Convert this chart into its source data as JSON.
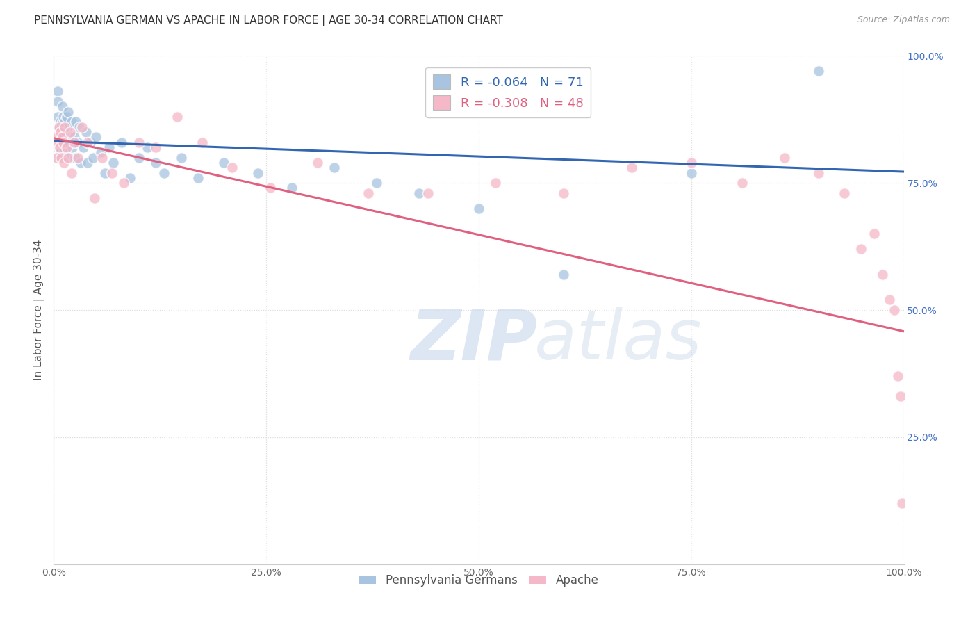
{
  "title": "PENNSYLVANIA GERMAN VS APACHE IN LABOR FORCE | AGE 30-34 CORRELATION CHART",
  "source": "Source: ZipAtlas.com",
  "ylabel": "In Labor Force | Age 30-34",
  "xlim": [
    0.0,
    1.0
  ],
  "ylim": [
    0.0,
    1.0
  ],
  "xticks": [
    0.0,
    0.25,
    0.5,
    0.75,
    1.0
  ],
  "yticks": [
    0.0,
    0.25,
    0.5,
    0.75,
    1.0
  ],
  "xticklabels": [
    "0.0%",
    "25.0%",
    "50.0%",
    "75.0%",
    "100.0%"
  ],
  "right_yticklabels": [
    "",
    "25.0%",
    "50.0%",
    "75.0%",
    "100.0%"
  ],
  "blue_R": -0.064,
  "blue_N": 71,
  "pink_R": -0.308,
  "pink_N": 48,
  "blue_color": "#a8c4e0",
  "pink_color": "#f4b8c8",
  "blue_line_color": "#3366b0",
  "pink_line_color": "#e06080",
  "legend_label_blue": "Pennsylvania Germans",
  "legend_label_pink": "Apache",
  "watermark_zip": "ZIP",
  "watermark_atlas": "atlas",
  "background_color": "#ffffff",
  "grid_color": "#dddddd",
  "title_fontsize": 11,
  "axis_label_fontsize": 11,
  "tick_fontsize": 10,
  "right_tick_color": "#4472c4",
  "blue_x": [
    0.002,
    0.003,
    0.004,
    0.004,
    0.005,
    0.005,
    0.005,
    0.006,
    0.006,
    0.006,
    0.007,
    0.007,
    0.007,
    0.008,
    0.008,
    0.008,
    0.009,
    0.009,
    0.01,
    0.01,
    0.01,
    0.011,
    0.011,
    0.012,
    0.012,
    0.013,
    0.013,
    0.014,
    0.015,
    0.015,
    0.016,
    0.017,
    0.018,
    0.019,
    0.02,
    0.021,
    0.022,
    0.024,
    0.025,
    0.026,
    0.028,
    0.03,
    0.032,
    0.035,
    0.038,
    0.04,
    0.043,
    0.046,
    0.05,
    0.055,
    0.06,
    0.065,
    0.07,
    0.08,
    0.09,
    0.1,
    0.11,
    0.12,
    0.13,
    0.15,
    0.17,
    0.2,
    0.24,
    0.28,
    0.33,
    0.38,
    0.43,
    0.5,
    0.6,
    0.75,
    0.9
  ],
  "blue_y": [
    0.84,
    0.82,
    0.85,
    0.8,
    0.93,
    0.91,
    0.88,
    0.86,
    0.84,
    0.82,
    0.85,
    0.83,
    0.8,
    0.87,
    0.84,
    0.81,
    0.86,
    0.83,
    0.9,
    0.87,
    0.84,
    0.88,
    0.85,
    0.84,
    0.81,
    0.87,
    0.83,
    0.85,
    0.88,
    0.83,
    0.86,
    0.89,
    0.83,
    0.8,
    0.84,
    0.87,
    0.82,
    0.84,
    0.8,
    0.87,
    0.83,
    0.86,
    0.79,
    0.82,
    0.85,
    0.79,
    0.83,
    0.8,
    0.84,
    0.81,
    0.77,
    0.82,
    0.79,
    0.83,
    0.76,
    0.8,
    0.82,
    0.79,
    0.77,
    0.8,
    0.76,
    0.79,
    0.77,
    0.74,
    0.78,
    0.75,
    0.73,
    0.7,
    0.57,
    0.77,
    0.97
  ],
  "pink_x": [
    0.003,
    0.004,
    0.005,
    0.006,
    0.007,
    0.008,
    0.009,
    0.01,
    0.011,
    0.012,
    0.013,
    0.015,
    0.017,
    0.019,
    0.021,
    0.024,
    0.028,
    0.033,
    0.04,
    0.048,
    0.057,
    0.068,
    0.082,
    0.1,
    0.12,
    0.145,
    0.175,
    0.21,
    0.255,
    0.31,
    0.37,
    0.44,
    0.52,
    0.6,
    0.68,
    0.75,
    0.81,
    0.86,
    0.9,
    0.93,
    0.95,
    0.965,
    0.975,
    0.983,
    0.989,
    0.993,
    0.996,
    0.998
  ],
  "pink_y": [
    0.84,
    0.8,
    0.83,
    0.86,
    0.82,
    0.85,
    0.8,
    0.84,
    0.83,
    0.79,
    0.86,
    0.82,
    0.8,
    0.85,
    0.77,
    0.83,
    0.8,
    0.86,
    0.83,
    0.72,
    0.8,
    0.77,
    0.75,
    0.83,
    0.82,
    0.88,
    0.83,
    0.78,
    0.74,
    0.79,
    0.73,
    0.73,
    0.75,
    0.73,
    0.78,
    0.79,
    0.75,
    0.8,
    0.77,
    0.73,
    0.62,
    0.65,
    0.57,
    0.52,
    0.5,
    0.37,
    0.33,
    0.12
  ],
  "blue_line_intercept": 0.832,
  "blue_line_slope": -0.06,
  "pink_line_intercept": 0.838,
  "pink_line_slope": -0.38
}
